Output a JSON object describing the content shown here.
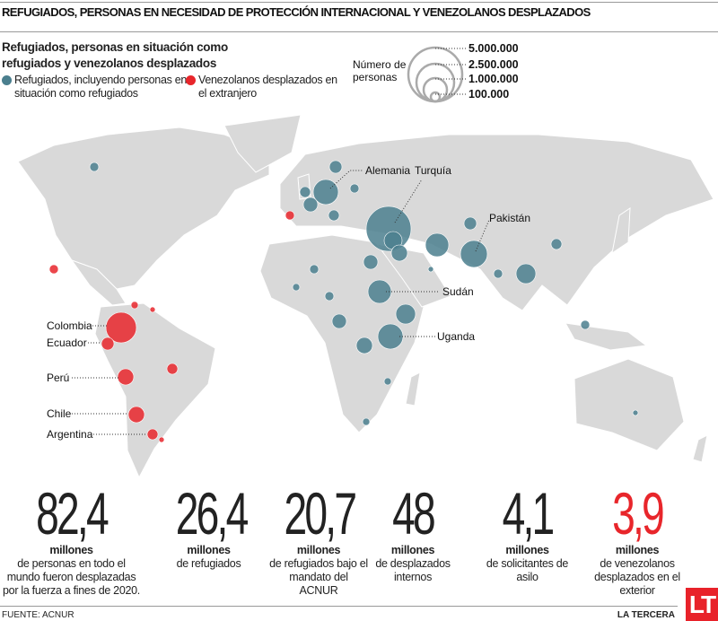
{
  "title": "REFUGIADOS, PERSONAS EN NECESIDAD DE PROTECCIÓN INTERNACIONAL Y VENEZOLANOS DESPLAZADOS",
  "subtitle": "Refugiados, personas en situación como refugiados y venezolanos desplazados",
  "legend": {
    "refugees": "Refugiados, incluyendo personas en situación como refugiados",
    "venezuelans": "Venezolanos desplazados en el extranjero",
    "size_title_1": "Número de",
    "size_title_2": "personas",
    "sizes": [
      "5.000.000",
      "2.500.000",
      "1.000.000",
      "100.000"
    ]
  },
  "colors": {
    "refugees": "#4b7f8e",
    "venezuelans": "#e8262b",
    "land": "#d9d9d9"
  },
  "map_labels": [
    "Alemania",
    "Turquía",
    "Pakistán",
    "Sudán",
    "Uganda",
    "Colombia",
    "Ecuador",
    "Perú",
    "Chile",
    "Argentina"
  ],
  "stats": [
    {
      "value": "82,4",
      "unit": "millones",
      "desc": "de personas en todo el mundo fueron desplazadas por la fuerza a fines de 2020."
    },
    {
      "value": "26,4",
      "unit": "millones",
      "desc": "de refugiados"
    },
    {
      "value": "20,7",
      "unit": "millones",
      "desc": "de refugiados bajo el mandato del ACNUR"
    },
    {
      "value": "48",
      "unit": "millones",
      "desc": "de desplazados internos"
    },
    {
      "value": "4,1",
      "unit": "millones",
      "desc": "de solicitantes de asilo"
    },
    {
      "value": "3,9",
      "unit": "millones",
      "desc": "de venezolanos desplazados en el exterior"
    }
  ],
  "footer": {
    "source": "FUENTE: ACNUR",
    "brand": "LA TERCERA",
    "logo": "LT"
  }
}
